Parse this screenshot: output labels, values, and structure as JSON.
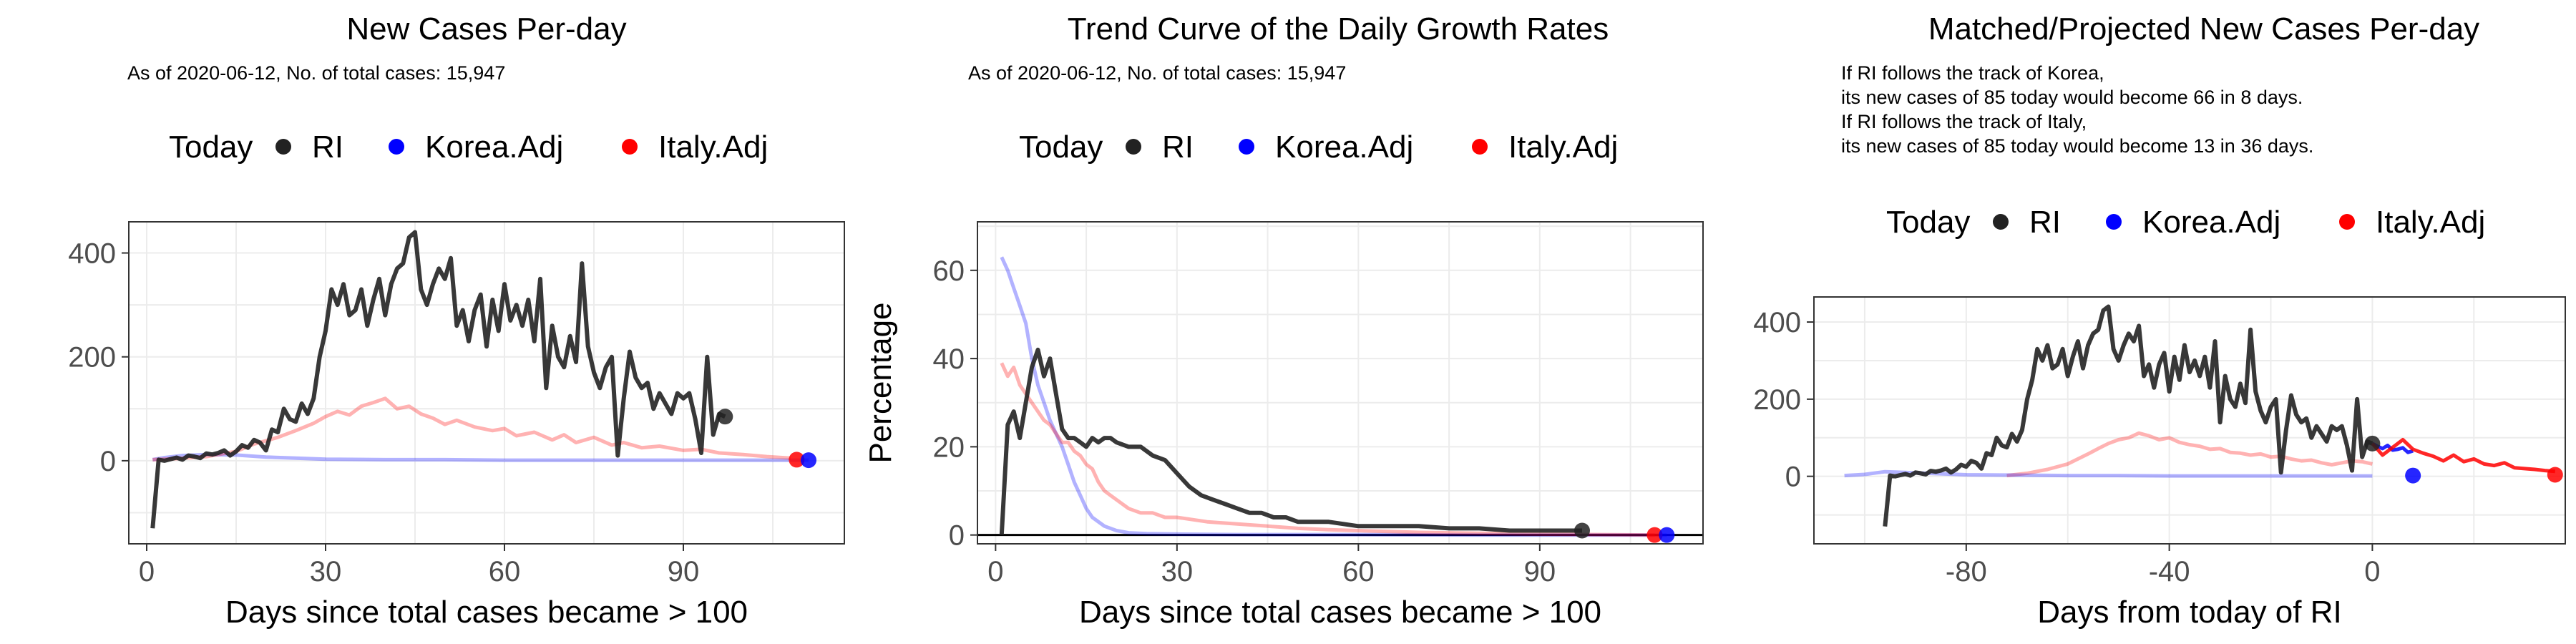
{
  "legend": {
    "today_label": "Today",
    "items": [
      {
        "name": "RI",
        "color": "#222222"
      },
      {
        "name": "Korea.Adj",
        "color": "#0000ff"
      },
      {
        "name": "Italy.Adj",
        "color": "#ff0000"
      }
    ]
  },
  "chart_data": [
    {
      "type": "line",
      "title": "New Cases Per-day",
      "subtitle_lines": [
        "As of 2020-06-12, No. of total cases: 15,947"
      ],
      "xlabel": "Days since total cases became > 100",
      "ylabel": "",
      "xlim": [
        -3,
        117
      ],
      "ylim": [
        -160,
        460
      ],
      "xticks": [
        0,
        30,
        60,
        90
      ],
      "yticks": [
        0,
        200,
        400
      ],
      "grid": true,
      "legend_position": "top",
      "series": [
        {
          "name": "RI",
          "color": "#222222",
          "x": [
            1,
            2,
            3,
            4,
            5,
            6,
            7,
            8,
            9,
            10,
            11,
            12,
            13,
            14,
            15,
            16,
            17,
            18,
            19,
            20,
            21,
            22,
            23,
            24,
            25,
            26,
            27,
            28,
            29,
            30,
            31,
            32,
            33,
            34,
            35,
            36,
            37,
            38,
            39,
            40,
            41,
            42,
            43,
            44,
            45,
            46,
            47,
            48,
            49,
            50,
            51,
            52,
            53,
            54,
            55,
            56,
            57,
            58,
            59,
            60,
            61,
            62,
            63,
            64,
            65,
            66,
            67,
            68,
            69,
            70,
            71,
            72,
            73,
            74,
            75,
            76,
            77,
            78,
            79,
            80,
            81,
            82,
            83,
            84,
            85,
            86,
            87,
            88,
            89,
            90,
            91,
            92,
            93,
            94,
            95,
            96,
            97
          ],
          "y": [
            -130,
            2,
            0,
            3,
            6,
            2,
            10,
            8,
            5,
            14,
            12,
            15,
            20,
            10,
            18,
            30,
            25,
            40,
            35,
            20,
            60,
            55,
            100,
            80,
            75,
            110,
            90,
            120,
            200,
            250,
            330,
            300,
            340,
            280,
            290,
            330,
            260,
            310,
            350,
            280,
            340,
            370,
            380,
            430,
            440,
            330,
            300,
            340,
            370,
            350,
            390,
            260,
            290,
            230,
            290,
            320,
            220,
            310,
            250,
            340,
            270,
            300,
            260,
            310,
            230,
            350,
            140,
            260,
            200,
            180,
            240,
            190,
            380,
            220,
            170,
            140,
            180,
            200,
            10,
            120,
            210,
            160,
            140,
            150,
            100,
            130,
            110,
            90,
            130,
            120,
            130,
            80,
            15,
            200,
            50,
            90,
            85
          ]
        },
        {
          "name": "Korea.Adj",
          "color": "#0000ff",
          "x": [
            1,
            3,
            6,
            10,
            15,
            20,
            25,
            30,
            40,
            50,
            60,
            70,
            80,
            90,
            100,
            105,
            111
          ],
          "y": [
            2,
            6,
            10,
            12,
            11,
            7,
            5,
            3,
            2,
            2,
            1,
            1,
            1,
            1,
            1,
            1,
            1
          ]
        },
        {
          "name": "Italy.Adj",
          "color": "#ff0000",
          "x": [
            1,
            5,
            10,
            15,
            18,
            22,
            25,
            28,
            30,
            32,
            34,
            36,
            38,
            40,
            42,
            44,
            46,
            48,
            50,
            52,
            55,
            58,
            60,
            62,
            65,
            68,
            70,
            72,
            75,
            78,
            80,
            83,
            86,
            90,
            93,
            96,
            100,
            104,
            108
          ],
          "y": [
            2,
            4,
            8,
            18,
            32,
            45,
            58,
            72,
            85,
            95,
            88,
            105,
            112,
            120,
            100,
            105,
            90,
            82,
            70,
            78,
            65,
            58,
            62,
            48,
            55,
            40,
            50,
            35,
            45,
            30,
            35,
            25,
            28,
            20,
            22,
            15,
            12,
            8,
            5
          ]
        }
      ],
      "today_points": [
        {
          "series": "RI",
          "x": 97,
          "y": 85
        },
        {
          "series": "Italy.Adj",
          "x": 109,
          "y": 2
        },
        {
          "series": "Korea.Adj",
          "x": 111,
          "y": 1
        }
      ]
    },
    {
      "type": "line",
      "title": "Trend Curve of the Daily Growth Rates",
      "subtitle_lines": [
        "As of 2020-06-12, No. of total cases: 15,947"
      ],
      "xlabel": "Days since total cases became > 100",
      "ylabel": "Percentage",
      "xlim": [
        -3,
        117
      ],
      "ylim": [
        -2,
        71
      ],
      "xticks": [
        0,
        30,
        60,
        90
      ],
      "yticks": [
        0,
        20,
        40,
        60
      ],
      "grid": true,
      "legend_position": "top",
      "hline": 0,
      "series": [
        {
          "name": "RI",
          "color": "#222222",
          "x": [
            1,
            2,
            3,
            4,
            5,
            6,
            7,
            8,
            9,
            10,
            11,
            12,
            13,
            14,
            15,
            16,
            17,
            18,
            19,
            20,
            22,
            24,
            26,
            28,
            30,
            32,
            34,
            36,
            38,
            40,
            42,
            44,
            46,
            48,
            50,
            55,
            60,
            65,
            70,
            75,
            80,
            85,
            90,
            95,
            97
          ],
          "y": [
            0,
            25,
            28,
            22,
            30,
            38,
            42,
            36,
            40,
            32,
            24,
            22,
            22,
            21,
            20,
            22,
            21,
            22,
            22,
            21,
            20,
            20,
            18,
            17,
            14,
            11,
            9,
            8,
            7,
            6,
            5,
            5,
            4,
            4,
            3,
            3,
            2,
            2,
            2,
            1.5,
            1.5,
            1,
            1,
            1,
            1
          ]
        },
        {
          "name": "Korea.Adj",
          "color": "#0000ff",
          "x": [
            1,
            2,
            3,
            4,
            5,
            6,
            7,
            8,
            9,
            10,
            11,
            12,
            13,
            14,
            15,
            16,
            17,
            18,
            20,
            22,
            25,
            30,
            40,
            60,
            80,
            100,
            111
          ],
          "y": [
            63,
            60,
            56,
            52,
            48,
            40,
            34,
            30,
            26,
            23,
            20,
            16,
            12,
            9,
            6,
            4,
            3,
            2,
            1,
            0.5,
            0.3,
            0.2,
            0.1,
            0.1,
            0,
            0,
            0
          ]
        },
        {
          "name": "Italy.Adj",
          "color": "#ff0000",
          "x": [
            1,
            2,
            3,
            4,
            5,
            6,
            7,
            8,
            9,
            10,
            11,
            12,
            13,
            14,
            15,
            16,
            17,
            18,
            19,
            20,
            22,
            24,
            26,
            28,
            30,
            35,
            40,
            45,
            50,
            55,
            60,
            70,
            80,
            90,
            100,
            109
          ],
          "y": [
            39,
            36,
            38,
            34,
            32,
            30,
            28,
            26,
            25,
            23,
            21,
            21,
            19,
            18,
            16,
            15,
            12,
            10,
            9,
            8,
            6,
            5,
            5,
            4,
            4,
            3,
            2.5,
            2,
            1.5,
            1.2,
            1,
            0.6,
            0.4,
            0.2,
            0.1,
            0
          ]
        }
      ],
      "today_points": [
        {
          "series": "RI",
          "x": 97,
          "y": 1
        },
        {
          "series": "Italy.Adj",
          "x": 109,
          "y": 0
        },
        {
          "series": "Korea.Adj",
          "x": 111,
          "y": 0
        }
      ]
    },
    {
      "type": "line",
      "title": "Matched/Projected New Cases Per-day",
      "subtitle_lines": [
        "If RI follows the track of Korea,",
        "its new cases of 85 today would become 66 in 8 days.",
        "If RI follows the track of Italy,",
        "its new cases of 85 today would become 13 in 36 days."
      ],
      "xlabel": "Days from today of RI",
      "ylabel": "",
      "xlim": [
        -110,
        38
      ],
      "ylim": [
        -175,
        465
      ],
      "xticks": [
        -80,
        -40,
        0
      ],
      "yticks": [
        0,
        200,
        400
      ],
      "grid": true,
      "legend_position": "top",
      "series": [
        {
          "name": "Italy.Adj",
          "color": "#ff0000",
          "x": [
            -72,
            -68,
            -64,
            -60,
            -58,
            -56,
            -54,
            -52,
            -50,
            -48,
            -46,
            -44,
            -42,
            -40,
            -38,
            -36,
            -34,
            -32,
            -30,
            -28,
            -26,
            -24,
            -22,
            -20,
            -18,
            -16,
            -14,
            -12,
            -10,
            -8,
            -6,
            -4,
            -2,
            0
          ],
          "y": [
            2,
            8,
            18,
            32,
            45,
            58,
            72,
            85,
            95,
            100,
            112,
            105,
            95,
            100,
            88,
            82,
            78,
            70,
            72,
            62,
            60,
            55,
            58,
            50,
            52,
            45,
            40,
            42,
            35,
            30,
            35,
            40,
            38,
            32
          ]
        },
        {
          "name": "Korea.Adj",
          "color": "#0000ff",
          "x": [
            -104,
            -100,
            -96,
            -92,
            -88,
            -84,
            -80,
            -70,
            -60,
            -50,
            -40,
            -30,
            -20,
            -10,
            0
          ],
          "y": [
            2,
            5,
            12,
            10,
            8,
            6,
            4,
            3,
            2,
            2,
            1,
            1,
            1,
            1,
            1
          ]
        },
        {
          "name": "RI",
          "color": "#222222",
          "x": [
            -96,
            -95,
            -94,
            -93,
            -92,
            -91,
            -90,
            -89,
            -88,
            -87,
            -86,
            -85,
            -84,
            -83,
            -82,
            -81,
            -80,
            -79,
            -78,
            -77,
            -76,
            -75,
            -74,
            -73,
            -72,
            -71,
            -70,
            -69,
            -68,
            -67,
            -66,
            -65,
            -64,
            -63,
            -62,
            -61,
            -60,
            -59,
            -58,
            -57,
            -56,
            -55,
            -54,
            -53,
            -52,
            -51,
            -50,
            -49,
            -48,
            -47,
            -46,
            -45,
            -44,
            -43,
            -42,
            -41,
            -40,
            -39,
            -38,
            -37,
            -36,
            -35,
            -34,
            -33,
            -32,
            -31,
            -30,
            -29,
            -28,
            -27,
            -26,
            -25,
            -24,
            -23,
            -22,
            -21,
            -20,
            -19,
            -18,
            -17,
            -16,
            -15,
            -14,
            -13,
            -12,
            -11,
            -10,
            -9,
            -8,
            -7,
            -6,
            -5,
            -4,
            -3,
            -2,
            -1,
            0
          ],
          "y": [
            -130,
            2,
            0,
            3,
            6,
            2,
            10,
            8,
            5,
            14,
            12,
            15,
            20,
            10,
            18,
            30,
            25,
            40,
            35,
            20,
            60,
            55,
            100,
            80,
            75,
            110,
            90,
            120,
            200,
            250,
            330,
            300,
            340,
            280,
            290,
            330,
            260,
            310,
            350,
            280,
            340,
            370,
            380,
            430,
            440,
            330,
            300,
            340,
            370,
            350,
            390,
            260,
            290,
            230,
            290,
            320,
            220,
            310,
            250,
            340,
            270,
            300,
            260,
            310,
            230,
            350,
            140,
            260,
            200,
            180,
            240,
            190,
            380,
            220,
            170,
            140,
            180,
            200,
            10,
            120,
            210,
            160,
            140,
            150,
            100,
            130,
            110,
            90,
            130,
            120,
            130,
            80,
            15,
            200,
            50,
            90,
            85
          ]
        },
        {
          "name": "Korea.Adj (projected)",
          "color": "#0000ff",
          "x": [
            0,
            1,
            2,
            3,
            4,
            5,
            6,
            7,
            8
          ],
          "y": [
            85,
            78,
            72,
            80,
            68,
            70,
            74,
            62,
            66
          ]
        },
        {
          "name": "Italy.Adj (projected)",
          "color": "#ff0000",
          "x": [
            0,
            2,
            4,
            6,
            8,
            10,
            12,
            14,
            16,
            18,
            20,
            22,
            24,
            26,
            28,
            30,
            32,
            34,
            36
          ],
          "y": [
            85,
            55,
            75,
            95,
            70,
            60,
            52,
            40,
            55,
            38,
            45,
            32,
            28,
            35,
            22,
            20,
            18,
            15,
            13
          ]
        }
      ],
      "today_points": [
        {
          "series": "RI",
          "x": 0,
          "y": 85
        },
        {
          "series": "Korea.Adj",
          "x": 8,
          "y": 2
        },
        {
          "series": "Italy.Adj",
          "x": 36,
          "y": 4
        }
      ]
    }
  ]
}
